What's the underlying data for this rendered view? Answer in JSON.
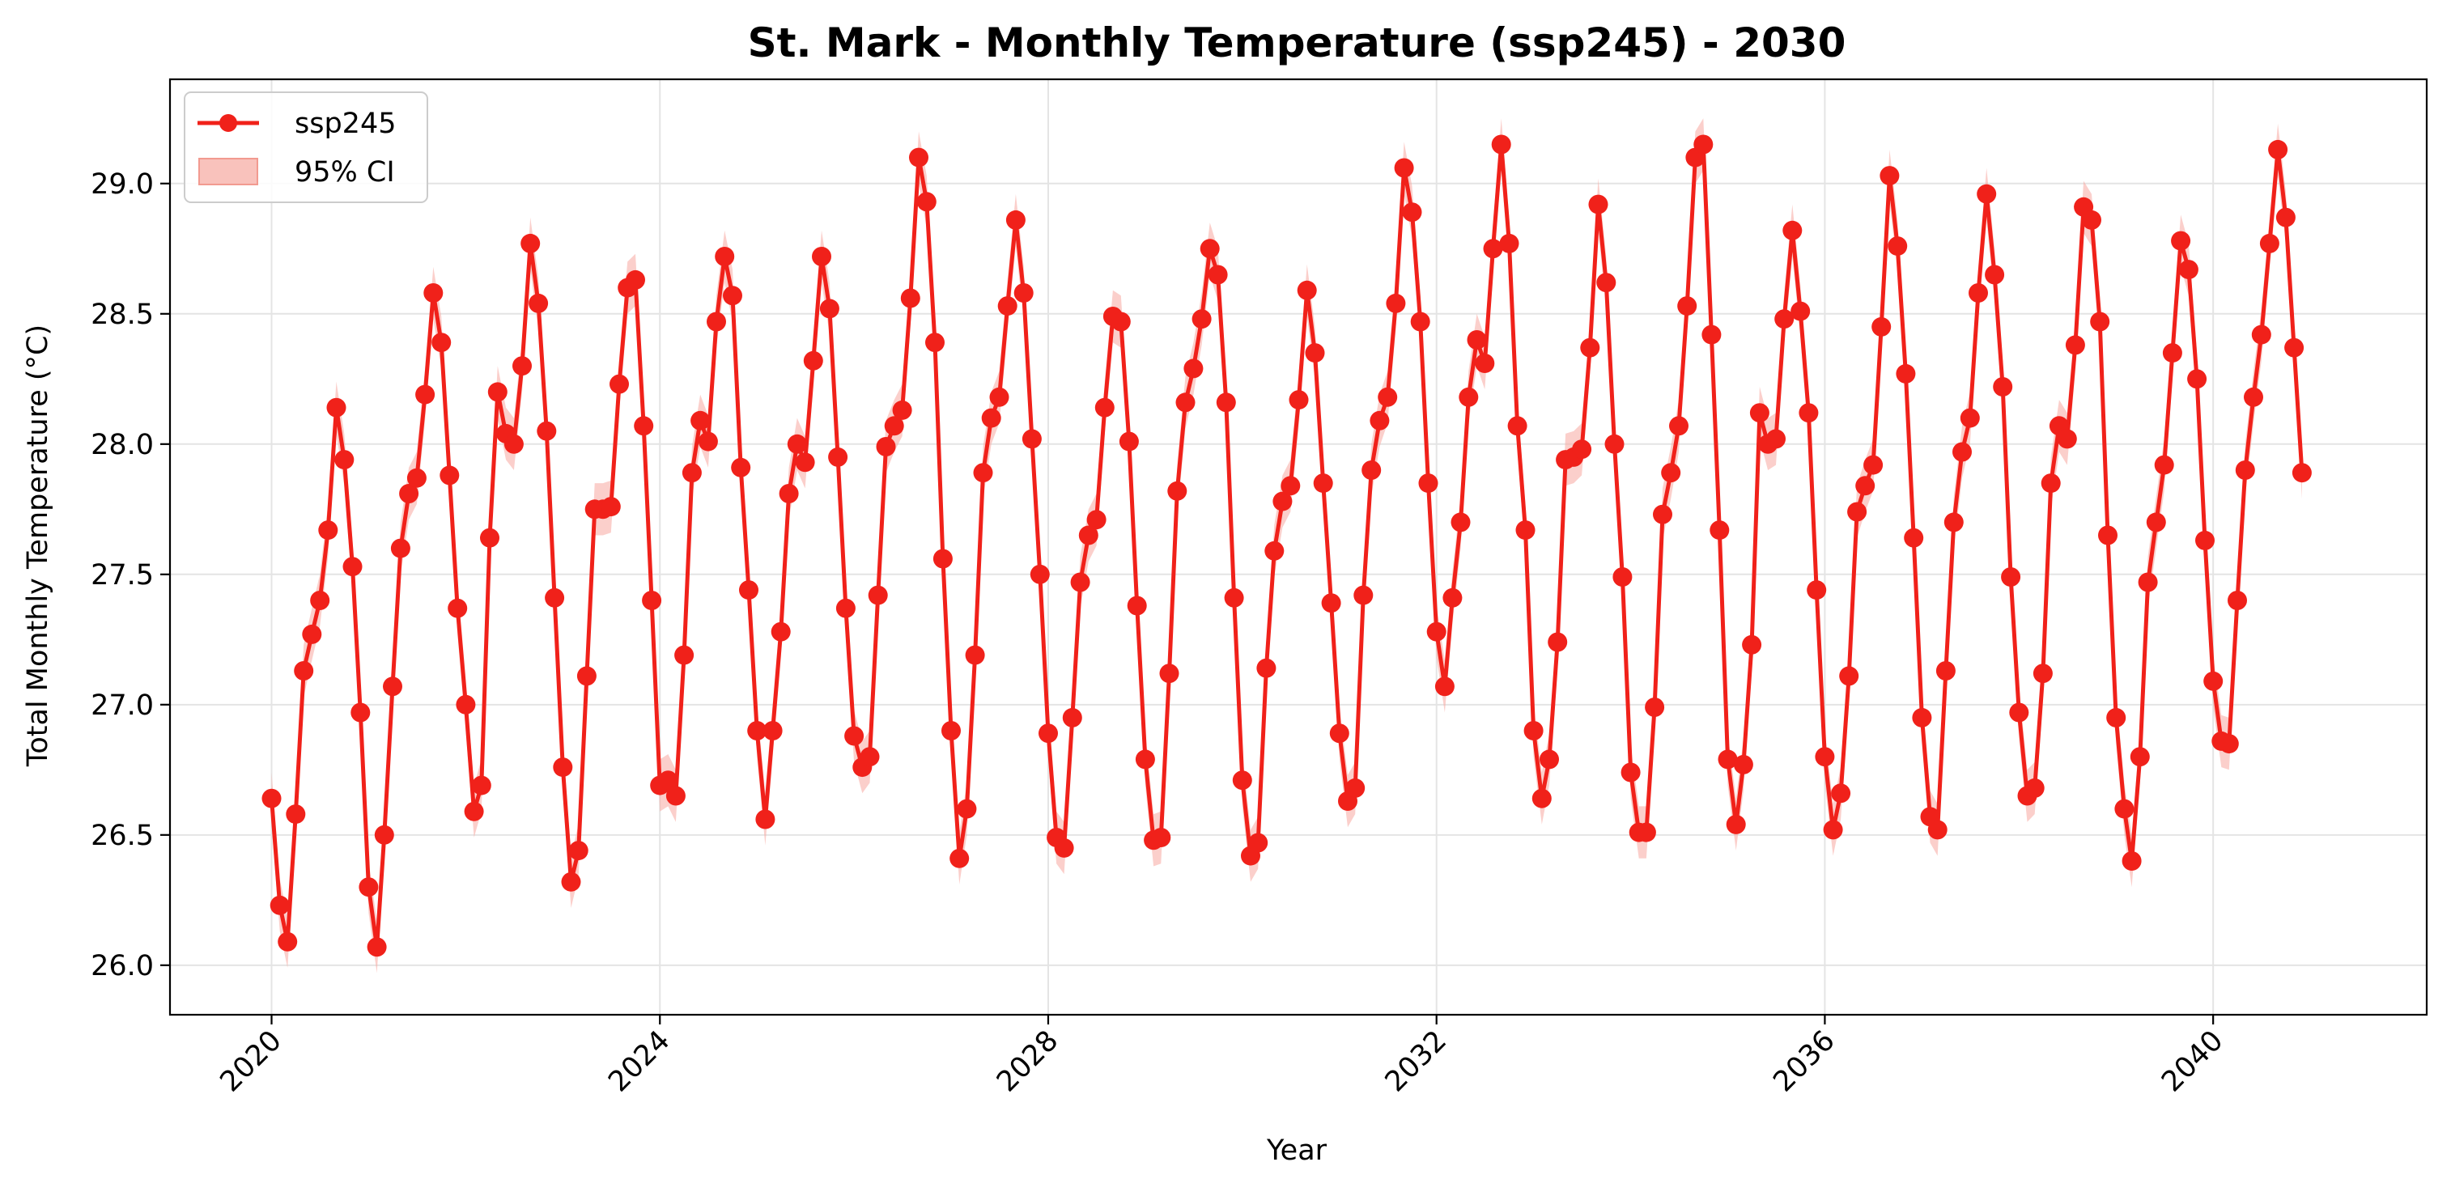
{
  "chart_data": {
    "type": "line",
    "title": "St. Mark - Monthly Temperature (ssp245) - 2030",
    "xlabel": "Year",
    "ylabel": "Total Monthly Temperature (°C)",
    "x_ticks": [
      "2020",
      "2024",
      "2028",
      "2032",
      "2036",
      "2040"
    ],
    "y_ticks": [
      "26.0",
      "26.5",
      "27.0",
      "27.5",
      "28.0",
      "28.5",
      "29.0"
    ],
    "xlim": [
      "2018-12-15",
      "2042-03-15"
    ],
    "ylim": [
      25.81,
      29.4
    ],
    "grid": true,
    "legend_position": "top-left",
    "legend": {
      "series_label": "ssp245",
      "ci_label": "95% CI"
    },
    "colors": {
      "line": "#f0211a",
      "ci_fill": "#f7a8a0"
    },
    "ci_half_width": 0.1,
    "series": [
      {
        "name": "ssp245",
        "start": "2020-01",
        "frequency": "monthly",
        "values": [
          26.64,
          26.23,
          26.09,
          26.58,
          27.13,
          27.27,
          27.4,
          27.67,
          28.14,
          27.94,
          27.53,
          26.97,
          26.3,
          26.07,
          26.5,
          27.07,
          27.6,
          27.81,
          27.87,
          28.19,
          28.58,
          28.39,
          27.88,
          27.37,
          27.0,
          26.59,
          26.69,
          27.64,
          28.2,
          28.04,
          28.0,
          28.3,
          28.77,
          28.54,
          28.05,
          27.41,
          26.76,
          26.32,
          26.44,
          27.11,
          27.75,
          27.75,
          27.76,
          28.23,
          28.6,
          28.63,
          28.07,
          27.4,
          26.69,
          26.71,
          26.65,
          27.19,
          27.89,
          28.09,
          28.01,
          28.47,
          28.72,
          28.57,
          27.91,
          27.44,
          26.9,
          26.56,
          26.9,
          27.28,
          27.81,
          28.0,
          27.93,
          28.32,
          28.72,
          28.52,
          27.95,
          27.37,
          26.88,
          26.76,
          26.8,
          27.42,
          27.99,
          28.07,
          28.13,
          28.56,
          29.1,
          28.93,
          28.39,
          27.56,
          26.9,
          26.41,
          26.6,
          27.19,
          27.89,
          28.1,
          28.18,
          28.53,
          28.86,
          28.58,
          28.02,
          27.5,
          26.89,
          26.49,
          26.45,
          26.95,
          27.47,
          27.65,
          27.71,
          28.14,
          28.49,
          28.47,
          28.01,
          27.38,
          26.79,
          26.48,
          26.49,
          27.12,
          27.82,
          28.16,
          28.29,
          28.48,
          28.75,
          28.65,
          28.16,
          27.41,
          26.71,
          26.42,
          26.47,
          27.14,
          27.59,
          27.78,
          27.84,
          28.17,
          28.59,
          28.35,
          27.85,
          27.39,
          26.89,
          26.63,
          26.68,
          27.42,
          27.9,
          28.09,
          28.18,
          28.54,
          29.06,
          28.89,
          28.47,
          27.85,
          27.28,
          27.07,
          27.41,
          27.7,
          28.18,
          28.4,
          28.31,
          28.75,
          29.15,
          28.77,
          28.07,
          27.67,
          26.9,
          26.64,
          26.79,
          27.24,
          27.94,
          27.95,
          27.98,
          28.37,
          28.92,
          28.62,
          28.0,
          27.49,
          26.74,
          26.51,
          26.51,
          26.99,
          27.73,
          27.89,
          28.07,
          28.53,
          29.1,
          29.15,
          28.42,
          27.67,
          26.79,
          26.54,
          26.77,
          27.23,
          28.12,
          28.0,
          28.02,
          28.48,
          28.82,
          28.51,
          28.12,
          27.44,
          26.8,
          26.52,
          26.66,
          27.11,
          27.74,
          27.84,
          27.92,
          28.45,
          29.03,
          28.76,
          28.27,
          27.64,
          26.95,
          26.57,
          26.52,
          27.13,
          27.7,
          27.97,
          28.1,
          28.58,
          28.96,
          28.65,
          28.22,
          27.49,
          26.97,
          26.65,
          26.68,
          27.12,
          27.85,
          28.07,
          28.02,
          28.38,
          28.91,
          28.86,
          28.47,
          27.65,
          26.95,
          26.6,
          26.4,
          26.8,
          27.47,
          27.7,
          27.92,
          28.35,
          28.78,
          28.67,
          28.25,
          27.63,
          27.09,
          26.86,
          26.85,
          27.4,
          27.9,
          28.18,
          28.42,
          28.77,
          29.13,
          28.87,
          28.37,
          27.89
        ]
      }
    ]
  }
}
